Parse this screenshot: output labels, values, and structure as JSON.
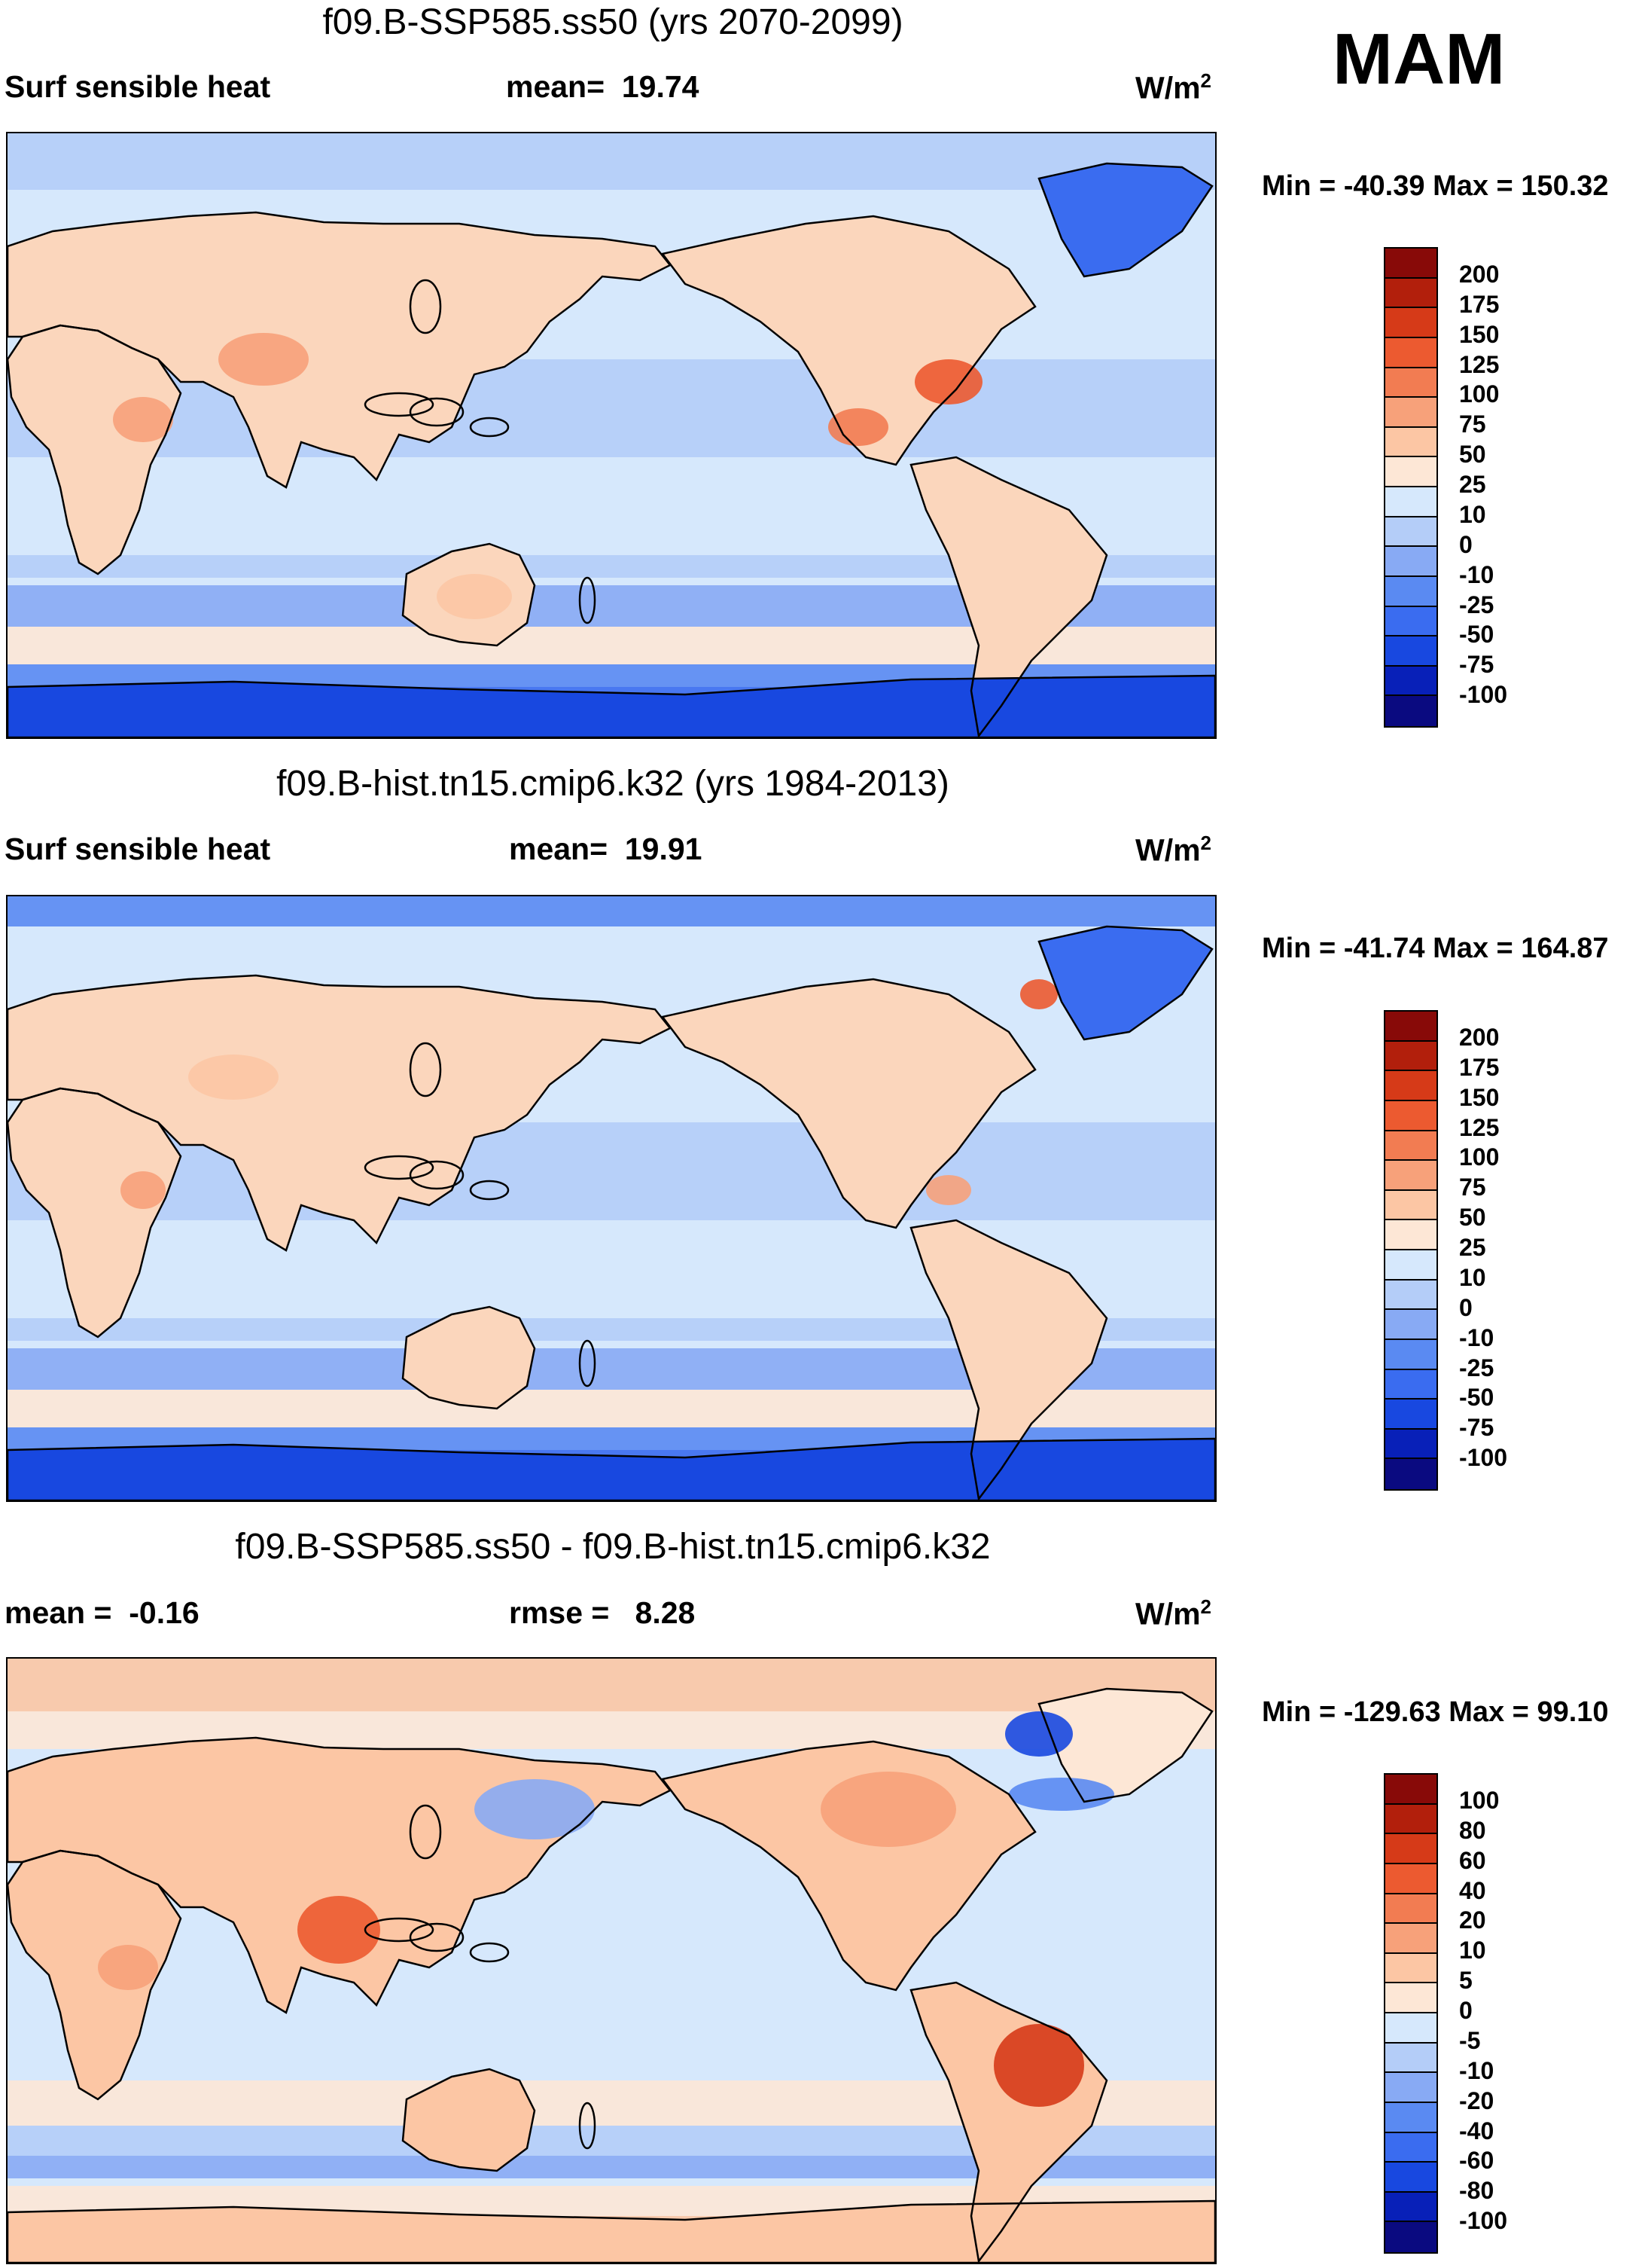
{
  "season": "MAM",
  "colors": {
    "abs_scale": [
      "#0a0a80",
      "#0820b8",
      "#1848e0",
      "#3a6cf0",
      "#5a8af2",
      "#88aaf4",
      "#b4cdf8",
      "#d6e8fc",
      "#fde7d6",
      "#fcc6a4",
      "#f7a17a",
      "#f27c52",
      "#ec5a30",
      "#d63a18",
      "#b21f0c",
      "#880a08"
    ],
    "diff_scale": [
      "#0a0a80",
      "#0820b8",
      "#1848e0",
      "#3a6cf0",
      "#5a8af2",
      "#88aaf4",
      "#b4cdf8",
      "#d6e8fc",
      "#fde7d6",
      "#fcc6a4",
      "#f7a17a",
      "#f27c52",
      "#ec5a30",
      "#d63a18",
      "#b21f0c",
      "#880a08"
    ],
    "land": "#fbd6bc",
    "ocean": "#d6e8fc",
    "polar": "#3a6cf0"
  },
  "chart_data": [
    {
      "type": "heatmap",
      "title": "f09.B-SSP585.ss50 (yrs 2070-2099)",
      "variable": "Surf sensible heat",
      "stat_label": "mean=",
      "stat_value": "19.74",
      "units": "W/m",
      "units_sup": "2",
      "min_label": "Min =",
      "min_value": "-40.39",
      "max_label": "Max =",
      "max_value": "150.32",
      "levels": [
        "200",
        "175",
        "150",
        "125",
        "100",
        "75",
        "50",
        "25",
        "10",
        "0",
        "-10",
        "-25",
        "-50",
        "-75",
        "-100"
      ],
      "field_min": -40.39,
      "field_max": 150.32,
      "field_mean": 19.74
    },
    {
      "type": "heatmap",
      "title": "f09.B-hist.tn15.cmip6.k32 (yrs 1984-2013)",
      "variable": "Surf sensible heat",
      "stat_label": "mean=",
      "stat_value": "19.91",
      "units": "W/m",
      "units_sup": "2",
      "min_label": "Min =",
      "min_value": "-41.74",
      "max_label": "Max =",
      "max_value": "164.87",
      "levels": [
        "200",
        "175",
        "150",
        "125",
        "100",
        "75",
        "50",
        "25",
        "10",
        "0",
        "-10",
        "-25",
        "-50",
        "-75",
        "-100"
      ],
      "field_min": -41.74,
      "field_max": 164.87,
      "field_mean": 19.91
    },
    {
      "type": "heatmap",
      "title": "f09.B-SSP585.ss50 - f09.B-hist.tn15.cmip6.k32",
      "variable": "",
      "stat_label": "mean =",
      "stat_value": "-0.16",
      "stat2_label": "rmse =",
      "stat2_value": "8.28",
      "units": "W/m",
      "units_sup": "2",
      "min_label": "Min =",
      "min_value": "-129.63",
      "max_label": "Max =",
      "max_value": "99.10",
      "levels": [
        "100",
        "80",
        "60",
        "40",
        "20",
        "10",
        "5",
        "0",
        "-5",
        "-10",
        "-20",
        "-40",
        "-60",
        "-80",
        "-100"
      ],
      "field_min": -129.63,
      "field_max": 99.1,
      "field_mean": -0.16,
      "field_rmse": 8.28
    }
  ]
}
